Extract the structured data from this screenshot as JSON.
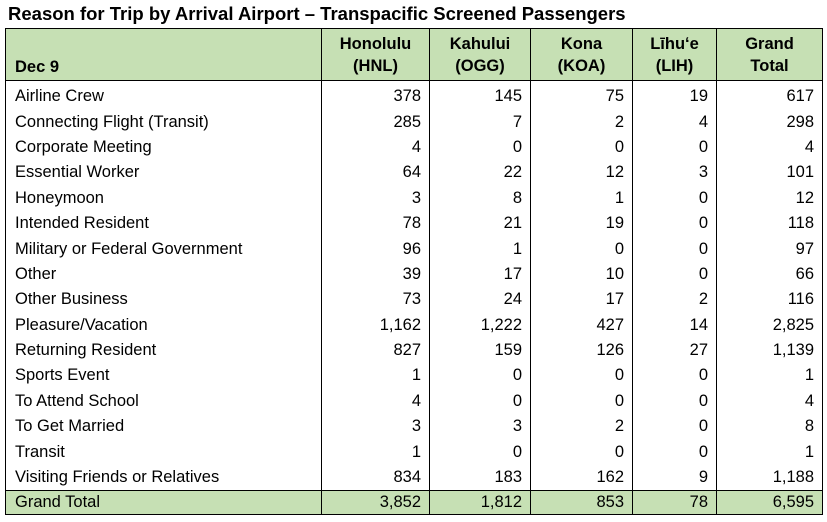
{
  "title": "Reason for Trip by Arrival Airport – Transpacific Screened Passengers",
  "colors": {
    "header_fill": "#c6e0b4",
    "border": "#000000",
    "text": "#000000"
  },
  "header": {
    "date_label": "Dec 9",
    "columns": [
      {
        "line1": "Honolulu",
        "line2": "(HNL)"
      },
      {
        "line1": "Kahului",
        "line2": "(OGG)"
      },
      {
        "line1": "Kona",
        "line2": "(KOA)"
      },
      {
        "line1": "Līhuʻe",
        "line2": "(LIH)"
      },
      {
        "line1": "Grand",
        "line2": "Total"
      }
    ]
  },
  "rows": [
    {
      "label": "Airline Crew",
      "values": [
        "378",
        "145",
        "75",
        "19",
        "617"
      ]
    },
    {
      "label": "Connecting Flight (Transit)",
      "values": [
        "285",
        "7",
        "2",
        "4",
        "298"
      ]
    },
    {
      "label": "Corporate Meeting",
      "values": [
        "4",
        "0",
        "0",
        "0",
        "4"
      ]
    },
    {
      "label": "Essential Worker",
      "values": [
        "64",
        "22",
        "12",
        "3",
        "101"
      ]
    },
    {
      "label": "Honeymoon",
      "values": [
        "3",
        "8",
        "1",
        "0",
        "12"
      ]
    },
    {
      "label": "Intended Resident",
      "values": [
        "78",
        "21",
        "19",
        "0",
        "118"
      ]
    },
    {
      "label": "Military or Federal Government",
      "values": [
        "96",
        "1",
        "0",
        "0",
        "97"
      ]
    },
    {
      "label": "Other",
      "values": [
        "39",
        "17",
        "10",
        "0",
        "66"
      ]
    },
    {
      "label": "Other Business",
      "values": [
        "73",
        "24",
        "17",
        "2",
        "116"
      ]
    },
    {
      "label": "Pleasure/Vacation",
      "values": [
        "1,162",
        "1,222",
        "427",
        "14",
        "2,825"
      ]
    },
    {
      "label": "Returning Resident",
      "values": [
        "827",
        "159",
        "126",
        "27",
        "1,139"
      ]
    },
    {
      "label": "Sports Event",
      "values": [
        "1",
        "0",
        "0",
        "0",
        "1"
      ]
    },
    {
      "label": "To Attend School",
      "values": [
        "4",
        "0",
        "0",
        "0",
        "4"
      ]
    },
    {
      "label": "To Get Married",
      "values": [
        "3",
        "3",
        "2",
        "0",
        "8"
      ]
    },
    {
      "label": "Transit",
      "values": [
        "1",
        "0",
        "0",
        "0",
        "1"
      ]
    },
    {
      "label": "Visiting Friends or Relatives",
      "values": [
        "834",
        "183",
        "162",
        "9",
        "1,188"
      ]
    }
  ],
  "grand_total": {
    "label": "Grand Total",
    "values": [
      "3,852",
      "1,812",
      "853",
      "78",
      "6,595"
    ]
  }
}
